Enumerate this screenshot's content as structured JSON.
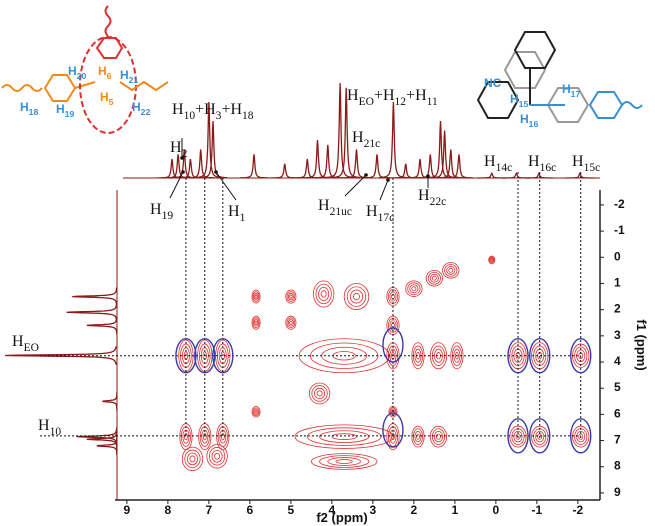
{
  "chart_data": {
    "type": "contour",
    "x_label": "f2 (ppm)",
    "y_label": "f1 (ppm)",
    "xlim": [
      9.29,
      -2.54
    ],
    "ylim": [
      -2.57,
      9.27
    ],
    "xticks": [
      9,
      8,
      7,
      6,
      5,
      4,
      3,
      2,
      1,
      0,
      -1,
      -2
    ],
    "yticks": [
      -2,
      -1,
      0,
      1,
      2,
      3,
      4,
      5,
      6,
      7,
      8,
      9
    ],
    "contour_color": "#e03030",
    "highlight_color": "#3a3aa8",
    "spectrum_color": "#8b1a1a",
    "annotations": [
      "H10+H3+H18",
      "HEO+H12+H11",
      "H21c",
      "H2",
      "H19",
      "H1",
      "H21uc",
      "H17c",
      "H22c",
      "H14c",
      "H16c",
      "H15c",
      "HEO",
      "H10"
    ],
    "f2_projection": [
      {
        "ppm": 7.9,
        "intensity": 20
      },
      {
        "ppm": 7.75,
        "intensity": 25
      },
      {
        "ppm": 7.6,
        "intensity": 30
      },
      {
        "ppm": 7.45,
        "intensity": 20
      },
      {
        "ppm": 7.2,
        "intensity": 30
      },
      {
        "ppm": 7.0,
        "intensity": 80
      },
      {
        "ppm": 6.9,
        "intensity": 60
      },
      {
        "ppm": 5.9,
        "intensity": 25
      },
      {
        "ppm": 5.15,
        "intensity": 15
      },
      {
        "ppm": 4.6,
        "intensity": 20
      },
      {
        "ppm": 4.35,
        "intensity": 40
      },
      {
        "ppm": 4.1,
        "intensity": 35
      },
      {
        "ppm": 3.8,
        "intensity": 100
      },
      {
        "ppm": 3.65,
        "intensity": 95
      },
      {
        "ppm": 3.4,
        "intensity": 30
      },
      {
        "ppm": 2.9,
        "intensity": 25
      },
      {
        "ppm": 2.5,
        "intensity": 80
      },
      {
        "ppm": 2.2,
        "intensity": 15
      },
      {
        "ppm": 1.85,
        "intensity": 20
      },
      {
        "ppm": 1.6,
        "intensity": 25
      },
      {
        "ppm": 1.35,
        "intensity": 60
      },
      {
        "ppm": 1.25,
        "intensity": 50
      },
      {
        "ppm": 1.1,
        "intensity": 30
      },
      {
        "ppm": 0.9,
        "intensity": 25
      },
      {
        "ppm": 0.1,
        "intensity": 5
      },
      {
        "ppm": -0.5,
        "intensity": 5
      },
      {
        "ppm": -1.05,
        "intensity": 5
      },
      {
        "ppm": -2.05,
        "intensity": 5
      }
    ],
    "f1_projection": [
      {
        "ppm": 1.5,
        "intensity": 40
      },
      {
        "ppm": 2.1,
        "intensity": 45
      },
      {
        "ppm": 2.6,
        "intensity": 27
      },
      {
        "ppm": 3.75,
        "intensity": 100
      },
      {
        "ppm": 5.5,
        "intensity": 13
      },
      {
        "ppm": 6.85,
        "intensity": 36
      },
      {
        "ppm": 6.95,
        "intensity": 27
      },
      {
        "ppm": 7.2,
        "intensity": 18
      }
    ],
    "cross_peaks": [
      {
        "f2": 7.56,
        "f1": 3.76,
        "f2_width": 0.35,
        "f1_width": 1.2
      },
      {
        "f2": 7.1,
        "f1": 3.76,
        "f2_width": 0.35,
        "f1_width": 1.2
      },
      {
        "f2": 6.66,
        "f1": 3.76,
        "f2_width": 0.35,
        "f1_width": 1.2
      },
      {
        "f2": 3.7,
        "f1": 3.76,
        "f2_width": 2.2,
        "f1_width": 1.3
      },
      {
        "f2": 2.51,
        "f1": 3.76,
        "f2_width": 0.3,
        "f1_width": 1.0
      },
      {
        "f2": 1.9,
        "f1": 3.76,
        "f2_width": 0.3,
        "f1_width": 1.0
      },
      {
        "f2": 1.4,
        "f1": 3.76,
        "f2_width": 0.4,
        "f1_width": 1.0
      },
      {
        "f2": 0.95,
        "f1": 3.76,
        "f2_width": 0.3,
        "f1_width": 1.0
      },
      {
        "f2": -0.54,
        "f1": 3.76,
        "f2_width": 0.4,
        "f1_width": 1.0
      },
      {
        "f2": -1.07,
        "f1": 3.76,
        "f2_width": 0.4,
        "f1_width": 1.0
      },
      {
        "f2": -2.07,
        "f1": 3.76,
        "f2_width": 0.4,
        "f1_width": 0.9
      },
      {
        "f2": 7.56,
        "f1": 6.85,
        "f2_width": 0.3,
        "f1_width": 1.0
      },
      {
        "f2": 7.1,
        "f1": 6.85,
        "f2_width": 0.3,
        "f1_width": 1.0
      },
      {
        "f2": 6.66,
        "f1": 6.85,
        "f2_width": 0.3,
        "f1_width": 1.0
      },
      {
        "f2": 3.7,
        "f1": 6.85,
        "f2_width": 2.4,
        "f1_width": 0.9
      },
      {
        "f2": 2.51,
        "f1": 6.85,
        "f2_width": 0.3,
        "f1_width": 1.0
      },
      {
        "f2": 1.9,
        "f1": 6.85,
        "f2_width": 0.3,
        "f1_width": 0.8
      },
      {
        "f2": 1.4,
        "f1": 6.85,
        "f2_width": 0.4,
        "f1_width": 0.8
      },
      {
        "f2": -0.54,
        "f1": 6.85,
        "f2_width": 0.4,
        "f1_width": 0.8
      },
      {
        "f2": -1.07,
        "f1": 6.85,
        "f2_width": 0.4,
        "f1_width": 0.8
      },
      {
        "f2": -2.07,
        "f1": 6.85,
        "f2_width": 0.4,
        "f1_width": 0.8
      },
      {
        "f2": 7.4,
        "f1": 7.7,
        "f2_width": 0.5,
        "f1_width": 0.9
      },
      {
        "f2": 6.8,
        "f1": 7.6,
        "f2_width": 0.5,
        "f1_width": 0.9
      },
      {
        "f2": 5.85,
        "f1": 1.5,
        "f2_width": 0.2,
        "f1_width": 0.5
      },
      {
        "f2": 5.85,
        "f1": 2.5,
        "f2_width": 0.2,
        "f1_width": 0.5
      },
      {
        "f2": 5.0,
        "f1": 1.5,
        "f2_width": 0.25,
        "f1_width": 0.5
      },
      {
        "f2": 5.0,
        "f1": 2.5,
        "f2_width": 0.25,
        "f1_width": 0.5
      },
      {
        "f2": 4.2,
        "f1": 1.4,
        "f2_width": 0.5,
        "f1_width": 1.0
      },
      {
        "f2": 3.4,
        "f1": 1.5,
        "f2_width": 0.6,
        "f1_width": 1.0
      },
      {
        "f2": 2.51,
        "f1": 1.5,
        "f2_width": 0.3,
        "f1_width": 0.7
      },
      {
        "f2": 2.51,
        "f1": 2.6,
        "f2_width": 0.3,
        "f1_width": 0.7
      },
      {
        "f2": 2.0,
        "f1": 1.2,
        "f2_width": 0.4,
        "f1_width": 0.6
      },
      {
        "f2": 1.5,
        "f1": 0.8,
        "f2_width": 0.4,
        "f1_width": 0.6
      },
      {
        "f2": 1.1,
        "f1": 0.5,
        "f2_width": 0.4,
        "f1_width": 0.6
      },
      {
        "f2": 0.1,
        "f1": 0.1,
        "f2_width": 0.15,
        "f1_width": 0.3
      },
      {
        "f2": 4.3,
        "f1": 5.2,
        "f2_width": 0.5,
        "f1_width": 0.8
      },
      {
        "f2": 5.85,
        "f1": 5.9,
        "f2_width": 0.2,
        "f1_width": 0.4
      },
      {
        "f2": 2.51,
        "f1": 5.9,
        "f2_width": 0.2,
        "f1_width": 0.4
      },
      {
        "f2": 3.7,
        "f1": 7.8,
        "f2_width": 1.6,
        "f1_width": 0.6
      }
    ],
    "highlights": [
      {
        "f2": 7.56,
        "f1": 3.76
      },
      {
        "f2": 7.1,
        "f1": 3.76
      },
      {
        "f2": 6.66,
        "f1": 3.76
      },
      {
        "f2": 2.51,
        "f1": 3.35
      },
      {
        "f2": -0.54,
        "f1": 3.76
      },
      {
        "f2": -1.07,
        "f1": 3.76
      },
      {
        "f2": -2.07,
        "f1": 3.76
      },
      {
        "f2": 2.51,
        "f1": 6.6
      },
      {
        "f2": -0.54,
        "f1": 6.82
      },
      {
        "f2": -1.07,
        "f1": 6.82
      },
      {
        "f2": -2.07,
        "f1": 6.82
      }
    ],
    "guides_f2": [
      7.56,
      7.1,
      6.66,
      2.51,
      -0.54,
      -1.07,
      -2.07
    ],
    "guides_f1": [
      3.76,
      6.82
    ]
  },
  "structures": [
    {
      "labels": [
        "H20",
        "H6",
        "H21",
        "H5",
        "H18",
        "H19",
        "H22"
      ]
    },
    {
      "labels": [
        "NC",
        "H15",
        "H17",
        "H16"
      ]
    }
  ]
}
